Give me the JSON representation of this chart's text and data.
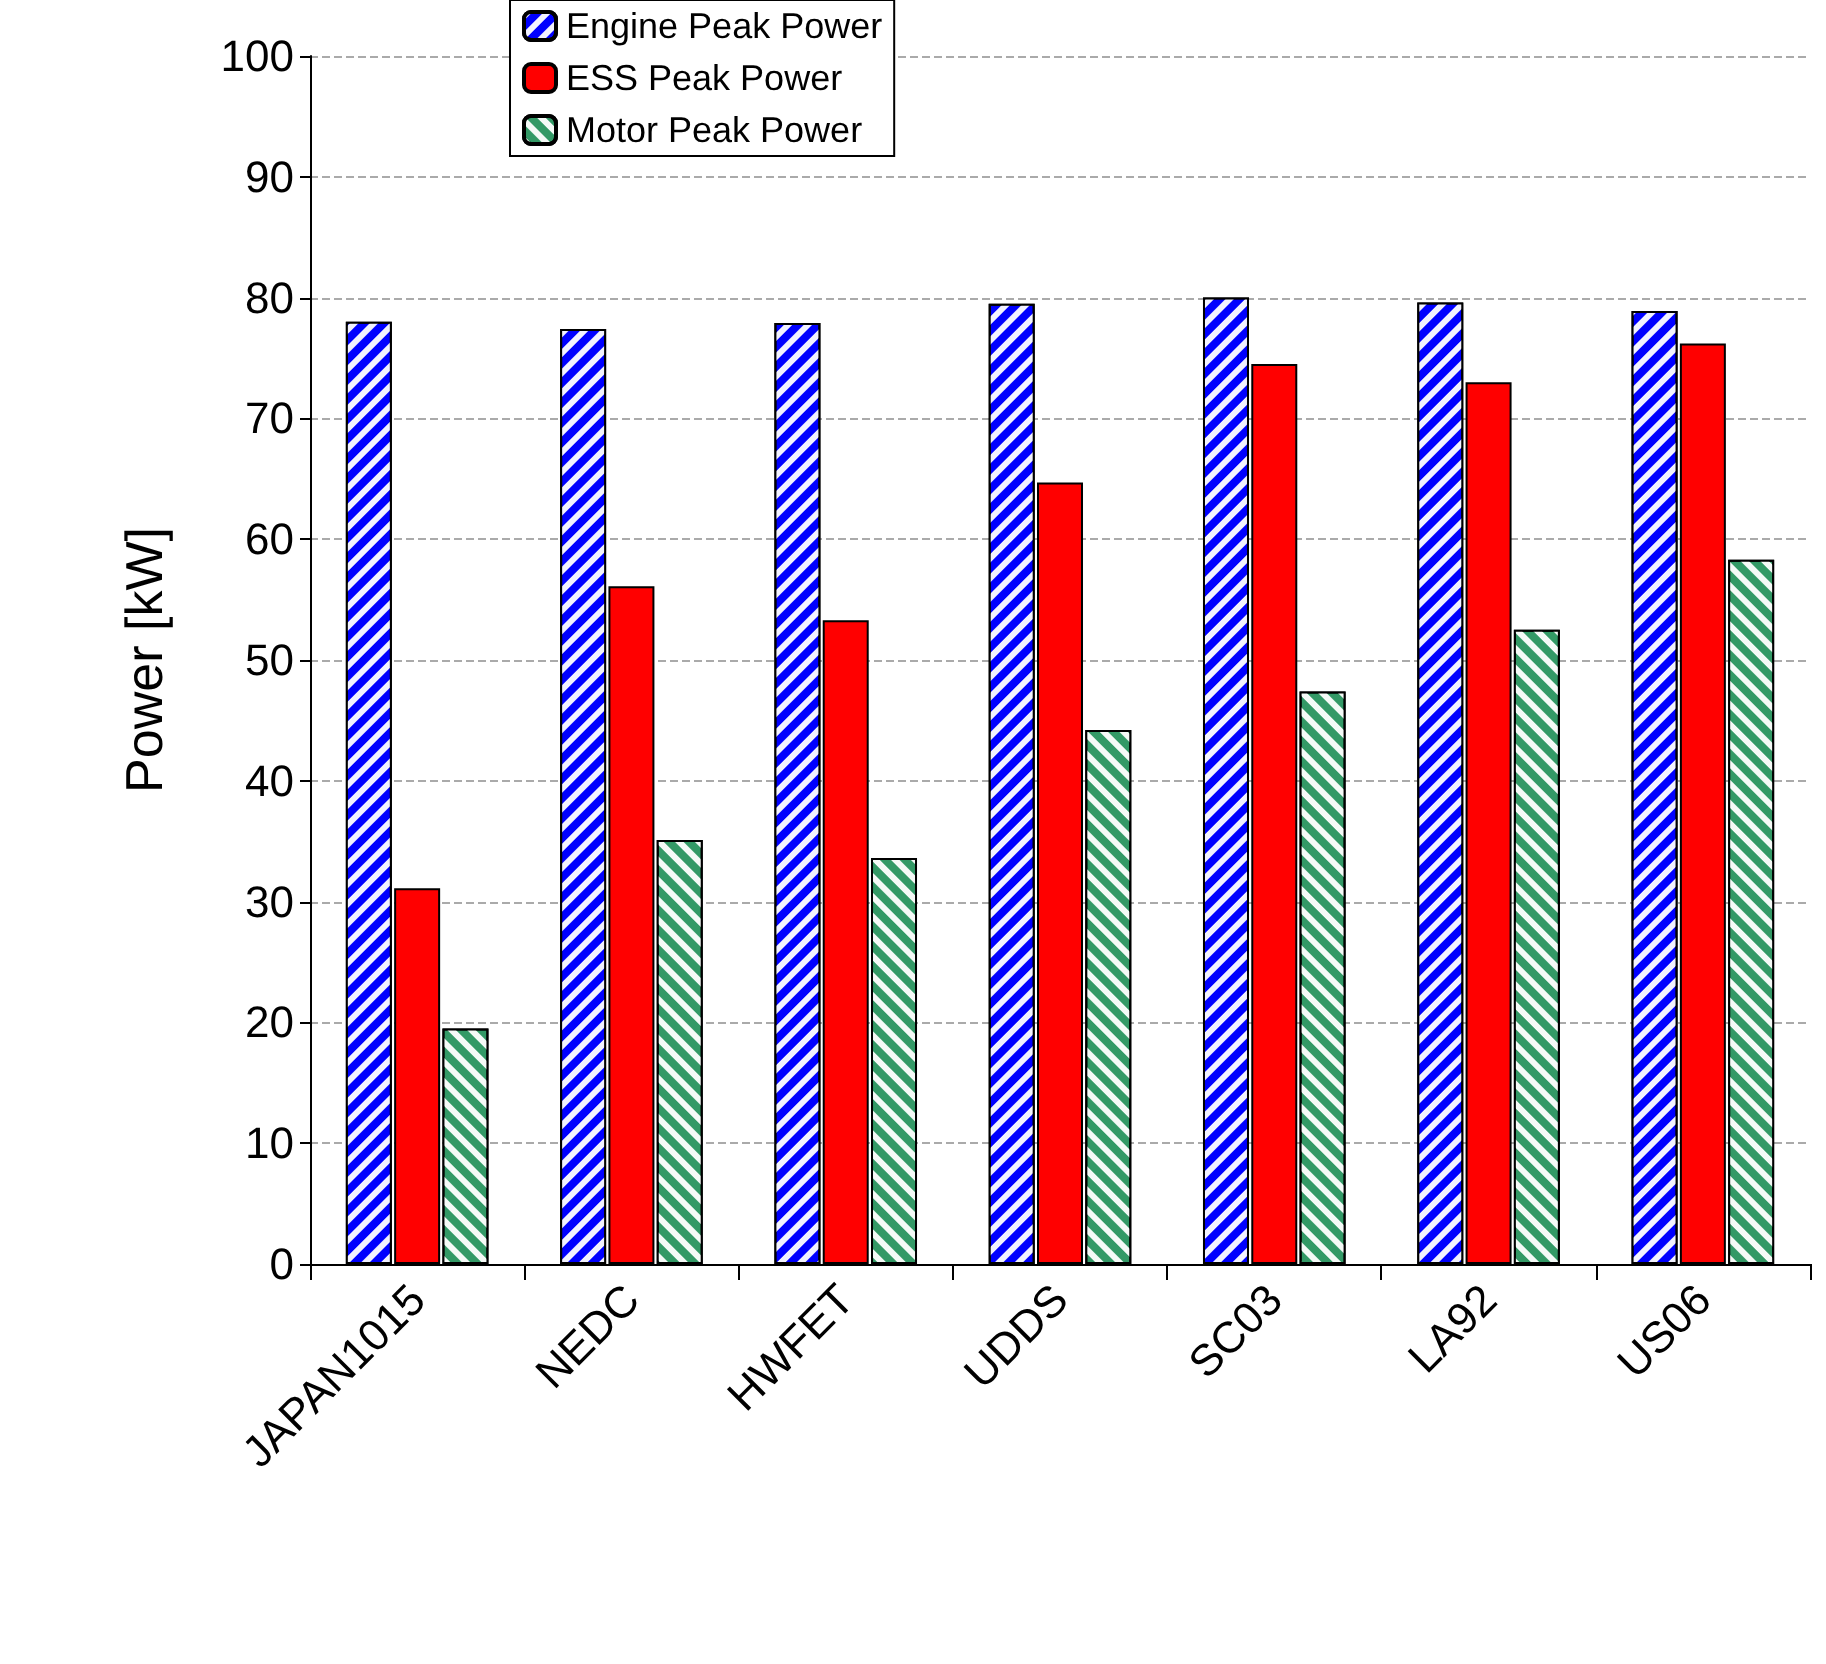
{
  "chart_data": {
    "type": "bar",
    "ylabel": "Power [kW]",
    "categories": [
      "JAPAN1015",
      "NEDC",
      "HWFET",
      "UDDS",
      "SC03",
      "LA92",
      "US06"
    ],
    "series": [
      {
        "name": "Engine Peak Power",
        "color": "#0000ff",
        "values": [
          78,
          77.4,
          77.9,
          79.5,
          80,
          79.6,
          78.9
        ]
      },
      {
        "name": "ESS Peak Power",
        "color": "#ff0000",
        "values": [
          31.1,
          56.1,
          53.3,
          64.7,
          74.5,
          73,
          76.2
        ]
      },
      {
        "name": "Motor Peak Power",
        "color": "#339966",
        "values": [
          19.5,
          35.1,
          33.6,
          44.2,
          47.4,
          52.5,
          58.3
        ]
      }
    ],
    "ylim": [
      0,
      100
    ],
    "yticks": [
      0,
      10,
      20,
      30,
      40,
      50,
      60,
      70,
      80,
      90,
      100
    ],
    "grid": "y",
    "legend": "top"
  }
}
